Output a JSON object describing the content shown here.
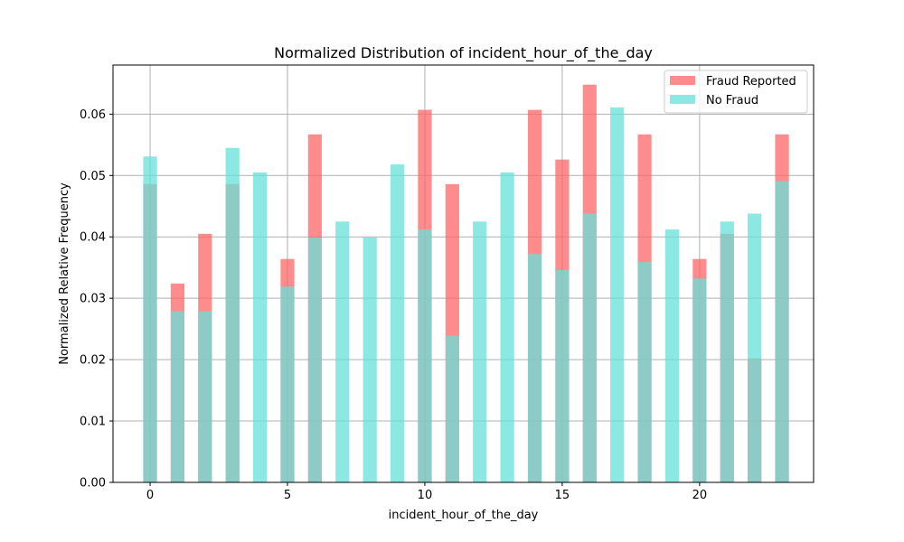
{
  "chart_data": {
    "type": "bar",
    "title": "Normalized Distribution of incident_hour_of_the_day",
    "xlabel": "incident_hour_of_the_day",
    "ylabel": "Normalized Relative Frequency",
    "x": [
      0,
      1,
      2,
      3,
      4,
      5,
      6,
      7,
      8,
      9,
      10,
      11,
      12,
      13,
      14,
      15,
      16,
      17,
      18,
      19,
      20,
      21,
      22,
      23
    ],
    "xticks": [
      0,
      5,
      10,
      15,
      20
    ],
    "yticks": [
      0.0,
      0.01,
      0.02,
      0.03,
      0.04,
      0.05,
      0.06
    ],
    "xlim": [
      -1.35,
      24.15
    ],
    "ylim": [
      0,
      0.068
    ],
    "grid": true,
    "legend_position": "top-right",
    "series": [
      {
        "name": "Fraud Reported",
        "color": "#ff6666",
        "values": [
          0.0486,
          0.0324,
          0.0405,
          0.0486,
          0.0,
          0.0364,
          0.0567,
          0.0,
          0.0,
          0.0,
          0.0607,
          0.0486,
          0.0,
          0.0,
          0.0607,
          0.0526,
          0.0648,
          0.0,
          0.0567,
          0.0,
          0.0364,
          0.0405,
          0.0202,
          0.0567
        ]
      },
      {
        "name": "No Fraud",
        "color": "#66e0d9",
        "values": [
          0.0531,
          0.0279,
          0.0279,
          0.0545,
          0.0505,
          0.0319,
          0.0399,
          0.0425,
          0.0399,
          0.0518,
          0.0412,
          0.0239,
          0.0425,
          0.0505,
          0.0372,
          0.0346,
          0.0438,
          0.0611,
          0.0359,
          0.0412,
          0.0332,
          0.0425,
          0.0438,
          0.0491
        ]
      }
    ]
  }
}
